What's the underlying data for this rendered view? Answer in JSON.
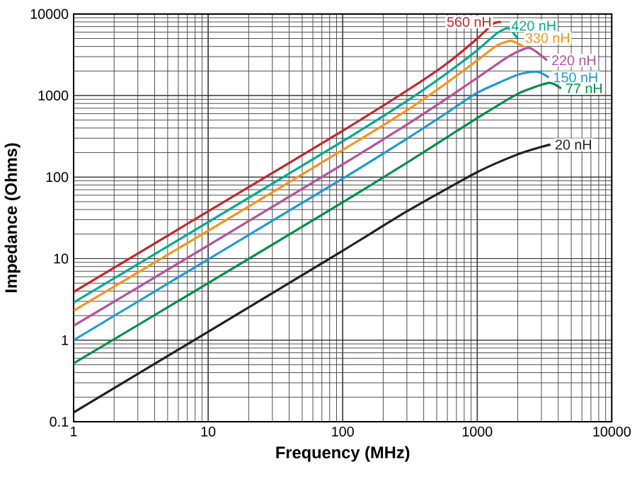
{
  "chart_data": {
    "type": "line",
    "xlabel": "Frequency (MHz)",
    "ylabel": "Impedance (Ohms)",
    "log": "xy",
    "grid": true,
    "legend": false,
    "marker": "none",
    "line_style": "solid",
    "xlim": [
      1,
      10000
    ],
    "ylim": [
      0.1,
      10000
    ],
    "xticks": [
      1,
      10,
      100,
      1000,
      10000
    ],
    "yticks": [
      0.1,
      1,
      10,
      100,
      1000,
      10000
    ],
    "series": [
      {
        "name": "560 nH",
        "color": "#c0282d",
        "x": [
          1,
          10,
          100,
          300,
          600,
          1000,
          1300,
          1450,
          1500
        ],
        "values": [
          3.9,
          38,
          370,
          1150,
          2500,
          5000,
          7500,
          8000,
          7800
        ]
      },
      {
        "name": "420 nH",
        "color": "#00a98f",
        "x": [
          1,
          10,
          100,
          300,
          600,
          1000,
          1400,
          1700,
          2000
        ],
        "values": [
          2.9,
          28,
          275,
          860,
          1900,
          3600,
          5800,
          6700,
          5000
        ]
      },
      {
        "name": "330 nH",
        "color": "#f7931e",
        "x": [
          1,
          10,
          100,
          300,
          600,
          1000,
          1400,
          1780,
          2200
        ],
        "values": [
          2.3,
          22,
          215,
          660,
          1450,
          2700,
          4100,
          4700,
          4000
        ]
      },
      {
        "name": "220 nH",
        "color": "#b5519c",
        "x": [
          1,
          10,
          100,
          300,
          600,
          1000,
          1700,
          2430,
          3300
        ],
        "values": [
          1.5,
          14.5,
          143,
          440,
          930,
          1650,
          3000,
          3850,
          2700
        ]
      },
      {
        "name": "150 nH",
        "color": "#1c9ad6",
        "x": [
          1,
          10,
          100,
          300,
          600,
          1000,
          2000,
          2800,
          3400
        ],
        "values": [
          1.0,
          9.8,
          96,
          295,
          620,
          1080,
          1800,
          1960,
          1670
        ]
      },
      {
        "name": "77 nH",
        "color": "#008d48",
        "x": [
          1,
          10,
          100,
          300,
          600,
          1000,
          2000,
          3400,
          4200
        ],
        "values": [
          0.52,
          5.0,
          49,
          150,
          310,
          530,
          1050,
          1430,
          1220
        ]
      },
      {
        "name": "20 nH",
        "color": "#231f20",
        "x": [
          1,
          10,
          100,
          300,
          1000,
          2000,
          3000,
          3500
        ],
        "values": [
          0.13,
          1.27,
          12.5,
          38,
          115,
          190,
          235,
          250
        ]
      }
    ]
  }
}
